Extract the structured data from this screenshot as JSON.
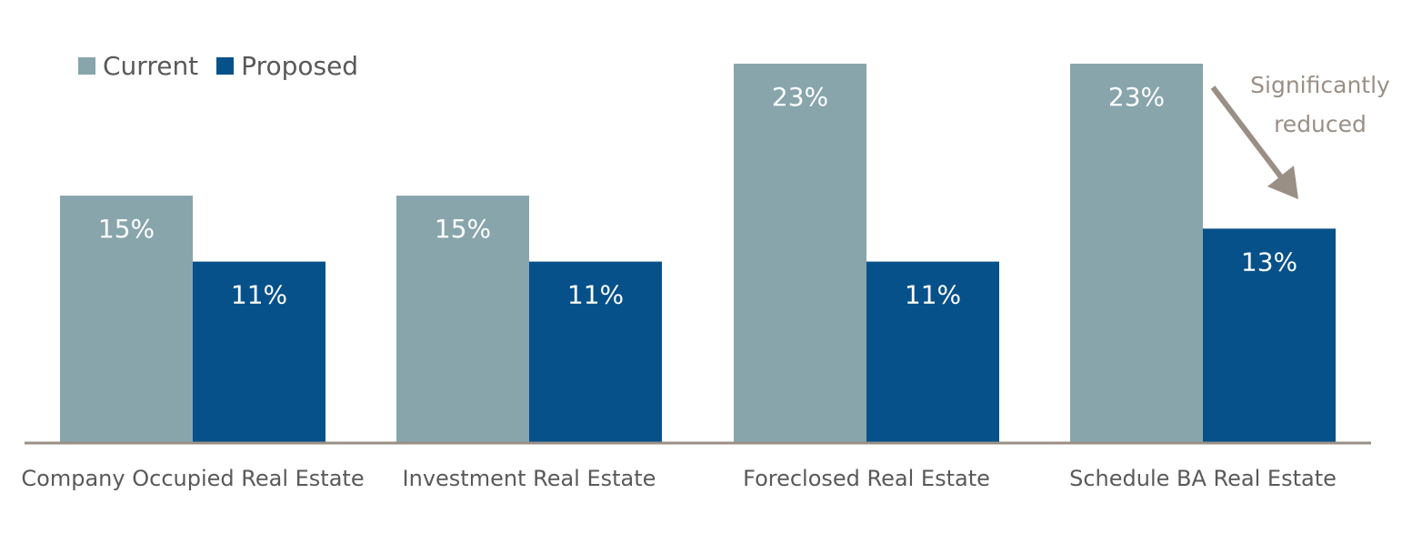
{
  "colors": {
    "current": "#88a5ac",
    "proposed": "#07518a",
    "axis": "#9a8f85",
    "label_text": "#ffffff",
    "category_text": "#595959",
    "annotation": "#9a8f85"
  },
  "legend": {
    "items": [
      {
        "label": "Current",
        "color": "#88a5ac"
      },
      {
        "label": "Proposed",
        "color": "#07518a"
      }
    ]
  },
  "annotation": {
    "line1": "Significantly",
    "line2": "reduced"
  },
  "chart_data": {
    "type": "bar",
    "title": "",
    "xlabel": "",
    "ylabel": "",
    "ylim": [
      0,
      23
    ],
    "grid": false,
    "legend_position": "top-left",
    "categories": [
      "Company Occupied Real Estate",
      "Investment Real Estate",
      "Foreclosed Real Estate",
      "Schedule BA Real Estate"
    ],
    "series": [
      {
        "name": "Current",
        "values": [
          15,
          15,
          23,
          23
        ],
        "labels": [
          "15%",
          "15%",
          "23%",
          "23%"
        ],
        "color": "#88a5ac"
      },
      {
        "name": "Proposed",
        "values": [
          11,
          11,
          11,
          13
        ],
        "labels": [
          "11%",
          "11%",
          "11%",
          "13%"
        ],
        "color": "#07518a"
      }
    ],
    "annotations": [
      {
        "text": "Significantly reduced",
        "category": "Schedule BA Real Estate",
        "series": "Proposed"
      }
    ]
  }
}
